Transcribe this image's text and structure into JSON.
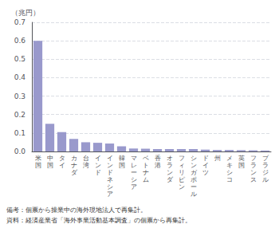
{
  "chart_data": {
    "type": "bar",
    "ylabel": "（兆円）",
    "categories": [
      "米\n国",
      "中\n国",
      "タ\nイ",
      "カ\nナ\nダ",
      "台\n湾",
      "イ\nン\nド",
      "イ\nン\nド\nネ\nシ\nア",
      "韓\n国",
      "マ\nレ\nー\nシ\nア",
      "ベ\nト\nナ\nム",
      "香\n港",
      "オ\nラ\nン\nダ",
      "フ\nィ\nリ\nピ\nン",
      "シ\nン\nガ\nポ\nー\nル",
      "ド\nイ\nツ",
      "州",
      "メ\nキ\nシ\nコ",
      "英\n国",
      "フ\nラ\nン\nス",
      "ブ\nラ\nジ\nル"
    ],
    "values": [
      0.6,
      0.15,
      0.105,
      0.068,
      0.05,
      0.047,
      0.043,
      0.028,
      0.016,
      0.015,
      0.013,
      0.013,
      0.013,
      0.013,
      0.01,
      0.008,
      0.008,
      0.007,
      0.006,
      0.005
    ],
    "color": "#9999cc",
    "ylim": [
      0,
      0.7
    ],
    "yticks": [
      {
        "value": 0.0,
        "label": "0.0"
      },
      0.1,
      0.2,
      0.3,
      0.4,
      0.5,
      0.6,
      0.7
    ],
    "grid": true,
    "annotations": [
      "備考：個票から操業中の海外現地法人で再集計。",
      "資料：経済産業省「海外事業活動基本調査」の個票から再集計。"
    ]
  }
}
